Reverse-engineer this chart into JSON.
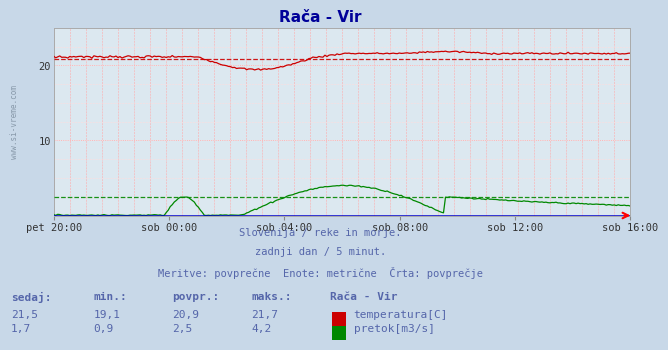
{
  "title": "Rača - Vir",
  "title_color": "#000099",
  "bg_color": "#c8d8e8",
  "plot_bg_color": "#dce8f0",
  "grid_v_color": "#ffaaaa",
  "grid_h_major_color": "#ffaaaa",
  "grid_h_minor_color": "#ffdddd",
  "xlabel_ticks": [
    "pet 20:00",
    "sob 00:00",
    "sob 04:00",
    "sob 08:00",
    "sob 12:00",
    "sob 16:00"
  ],
  "ylim": [
    0,
    25
  ],
  "yticks": [
    10,
    20
  ],
  "temp_avg": 20.9,
  "flow_avg": 2.5,
  "temp_color": "#cc0000",
  "flow_color": "#008800",
  "baseline_color": "#0000cc",
  "watermark": "www.si-vreme.com",
  "watermark_color": "#8899aa",
  "footer_line1": "Slovenija / reke in morje.",
  "footer_line2": "zadnji dan / 5 minut.",
  "footer_line3": "Meritve: povprečne  Enote: metrične  Črta: povprečje",
  "footer_color": "#5566aa",
  "table_color": "#5566aa",
  "table_header": [
    "sedaj:",
    "min.:",
    "povpr.:",
    "maks.:",
    "Rača - Vir"
  ],
  "table_row1": [
    "21,5",
    "19,1",
    "20,9",
    "21,7",
    "temperatura[C]"
  ],
  "table_row2": [
    "1,7",
    "0,9",
    "2,5",
    "4,2",
    "pretok[m3/s]"
  ],
  "n_points": 288
}
